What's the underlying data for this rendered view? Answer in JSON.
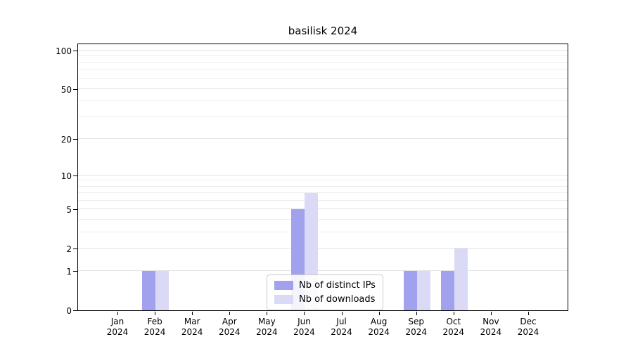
{
  "figure": {
    "title": "basilisk 2024"
  },
  "chart_data": {
    "type": "bar",
    "title": "basilisk 2024",
    "categories": [
      "Jan 2024",
      "Feb 2024",
      "Mar 2024",
      "Apr 2024",
      "May 2024",
      "Jun 2024",
      "Jul 2024",
      "Aug 2024",
      "Sep 2024",
      "Oct 2024",
      "Nov 2024",
      "Dec 2024"
    ],
    "series": [
      {
        "name": "Nb of distinct IPs",
        "color": "#a1a1ee",
        "values": [
          0,
          1,
          0,
          0,
          0,
          5,
          0,
          0,
          1,
          1,
          0,
          0
        ]
      },
      {
        "name": "Nb of downloads",
        "color": "#dadaf6",
        "values": [
          0,
          1,
          0,
          0,
          0,
          7,
          0,
          0,
          1,
          2,
          0,
          0
        ]
      }
    ],
    "xlabel": "",
    "ylabel": "",
    "yscale": "log1p",
    "ylim": [
      0,
      112
    ],
    "y_major_ticks": [
      0,
      1,
      2,
      5,
      10,
      20,
      50,
      100
    ],
    "y_minor_ticks": [
      3,
      4,
      6,
      7,
      8,
      9,
      30,
      40,
      60,
      70,
      80,
      90
    ],
    "grid": "horizontal",
    "legend": {
      "position": "lower-center-inside",
      "items": [
        "Nb of distinct IPs",
        "Nb of downloads"
      ]
    }
  }
}
